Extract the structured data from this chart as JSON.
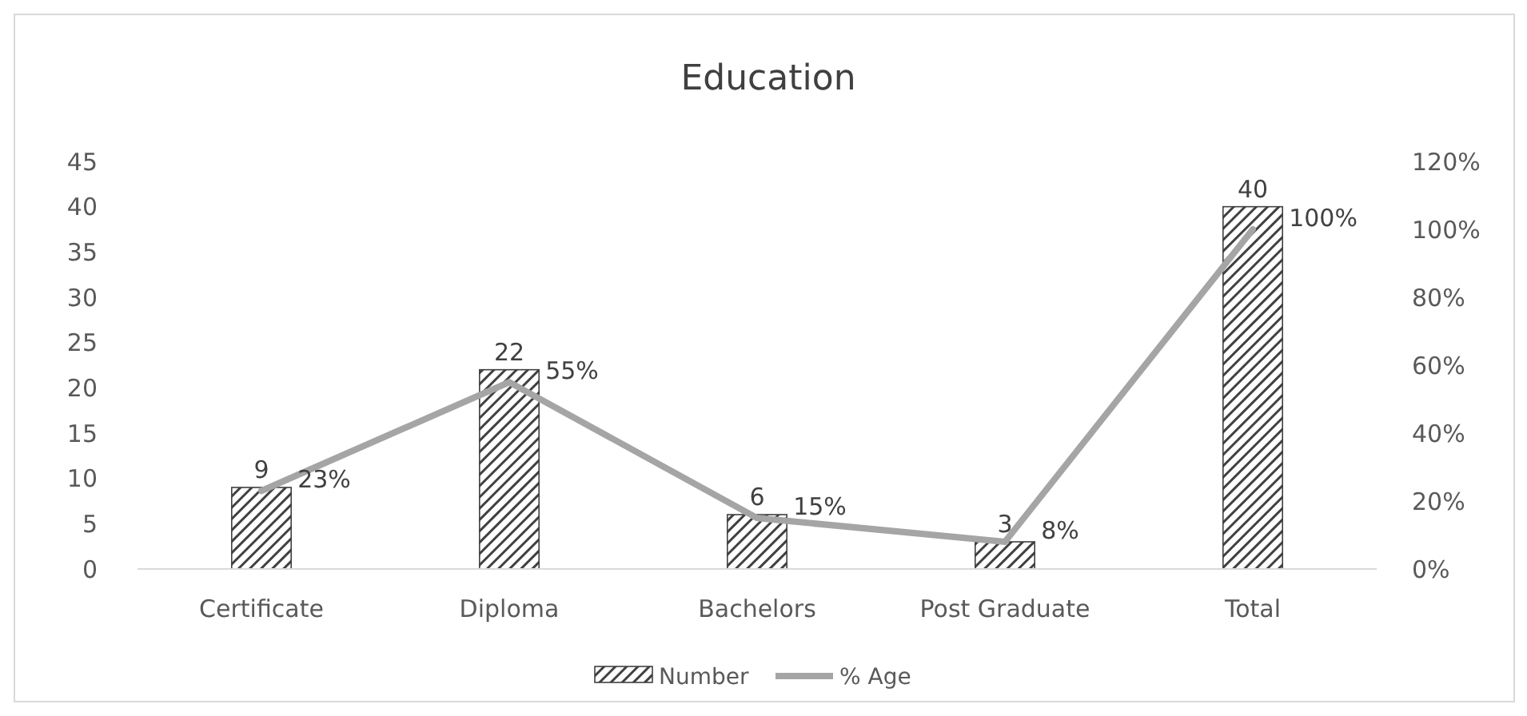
{
  "chart_data": {
    "type": "bar",
    "title": "Education",
    "categories": [
      "Certificate",
      "Diploma",
      "Bachelors",
      "Post Graduate",
      "Total"
    ],
    "series": [
      {
        "name": "Number",
        "color": "#404040",
        "values": [
          9,
          22,
          6,
          3,
          40
        ],
        "value_labels": [
          "9",
          "22",
          "6",
          "3",
          "40"
        ]
      },
      {
        "name": "% Age",
        "type": "line",
        "axis": "y2",
        "color": "#a5a5a5",
        "values": [
          23,
          55,
          15,
          8,
          100
        ],
        "value_labels": [
          "23%",
          "55%",
          "15%",
          "8%",
          "100%"
        ]
      }
    ],
    "ylim": [
      0,
      45
    ],
    "yticks": [
      0,
      5,
      10,
      15,
      20,
      25,
      30,
      35,
      40,
      45
    ],
    "y2lim": [
      0,
      120
    ],
    "y2ticks": [
      {
        "value": 0,
        "label": "0%"
      },
      {
        "value": 20,
        "label": "20%"
      },
      {
        "value": 40,
        "label": "40%"
      },
      {
        "value": 60,
        "label": "60%"
      },
      {
        "value": 80,
        "label": "80%"
      },
      {
        "value": 100,
        "label": "100%"
      },
      {
        "value": 120,
        "label": "120%"
      }
    ],
    "grid": false,
    "legend": "bottom",
    "marker": "none",
    "line_style": "solid"
  }
}
